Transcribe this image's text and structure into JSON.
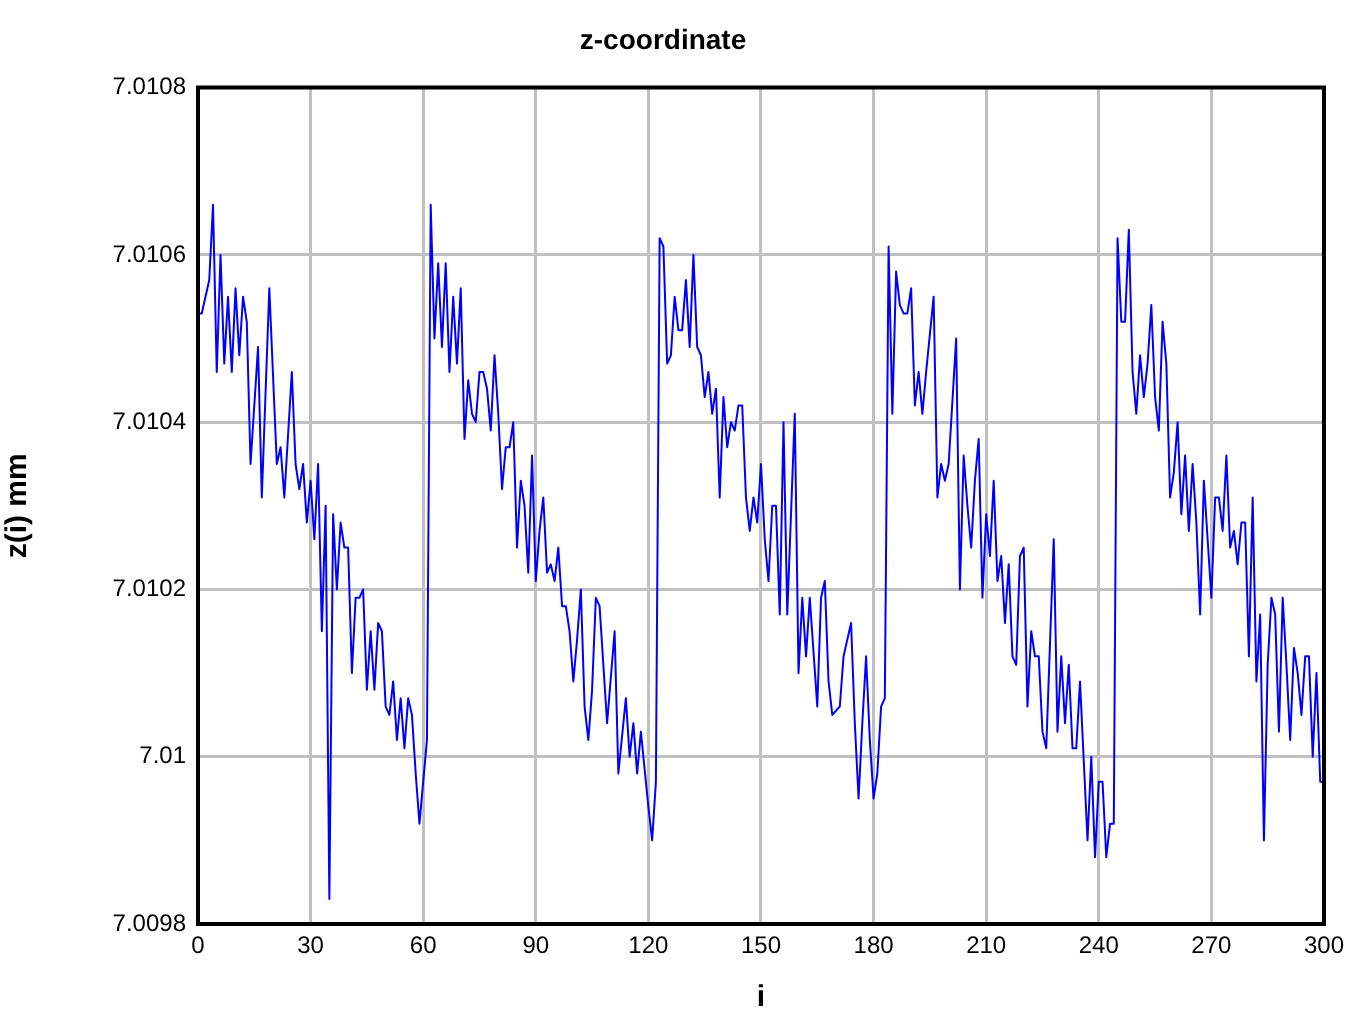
{
  "chart_data": {
    "type": "line",
    "title": "z-coordinate",
    "xlabel": "i",
    "ylabel": "z(i) mm",
    "xlim": [
      0,
      300
    ],
    "xticks": [
      0,
      30,
      60,
      90,
      120,
      150,
      180,
      210,
      240,
      270,
      300
    ],
    "ylim": [
      7.0098,
      7.0108
    ],
    "yticks": [
      7.0098,
      7.01,
      7.0102,
      7.0104,
      7.0106,
      7.0108
    ],
    "grid": true,
    "legend": false,
    "marker": "none",
    "line_style": "solid",
    "series": [
      {
        "color": "#0000ff",
        "x": [
          0,
          1,
          2,
          3,
          4,
          5,
          6,
          7,
          8,
          9,
          10,
          11,
          12,
          13,
          14,
          16,
          17,
          19,
          21,
          22,
          23,
          25,
          26,
          27,
          28,
          29,
          30,
          31,
          32,
          33,
          34,
          35,
          36,
          37,
          38,
          39,
          40,
          41,
          42,
          43,
          44,
          45,
          46,
          47,
          48,
          49,
          50,
          51,
          52,
          53,
          54,
          55,
          56,
          57,
          58,
          59,
          61,
          62,
          63,
          64,
          65,
          66,
          67,
          68,
          69,
          70,
          71,
          72,
          73,
          74,
          75,
          76,
          77,
          78,
          79,
          80,
          81,
          82,
          83,
          84,
          85,
          86,
          87,
          88,
          89,
          90,
          91,
          92,
          93,
          94,
          95,
          96,
          97,
          98,
          99,
          100,
          101,
          102,
          103,
          104,
          105,
          106,
          107,
          109,
          111,
          112,
          114,
          115,
          116,
          117,
          118,
          120,
          121,
          122,
          123,
          124,
          125,
          126,
          127,
          128,
          129,
          130,
          131,
          132,
          133,
          134,
          135,
          136,
          137,
          138,
          139,
          140,
          141,
          142,
          143,
          144,
          145,
          146,
          147,
          148,
          149,
          150,
          151,
          152,
          153,
          154,
          155,
          156,
          157,
          158,
          159,
          160,
          161,
          162,
          163,
          165,
          166,
          167,
          168,
          169,
          171,
          172,
          174,
          175,
          176,
          177,
          178,
          179,
          180,
          181,
          182,
          183,
          184,
          185,
          186,
          187,
          188,
          189,
          190,
          191,
          192,
          193,
          194,
          196,
          197,
          198,
          199,
          200,
          202,
          203,
          204,
          205,
          206,
          207,
          208,
          209,
          210,
          211,
          212,
          213,
          214,
          215,
          216,
          217,
          218,
          219,
          220,
          221,
          222,
          223,
          224,
          225,
          226,
          228,
          229,
          230,
          231,
          232,
          233,
          234,
          235,
          237,
          238,
          239,
          240,
          241,
          242,
          243,
          244,
          245,
          246,
          247,
          248,
          249,
          250,
          251,
          252,
          253,
          254,
          255,
          256,
          257,
          258,
          259,
          260,
          261,
          262,
          263,
          264,
          265,
          266,
          267,
          268,
          269,
          270,
          271,
          272,
          273,
          274,
          275,
          276,
          277,
          278,
          279,
          280,
          281,
          282,
          283,
          284,
          285,
          286,
          287,
          288,
          289,
          290,
          291,
          292,
          293,
          294,
          295,
          296,
          297,
          298,
          299,
          300
        ],
        "values": [
          7.01053,
          7.01053,
          7.01055,
          7.01057,
          7.01066,
          7.01046,
          7.0106,
          7.01047,
          7.01055,
          7.01046,
          7.01056,
          7.01048,
          7.01055,
          7.01052,
          7.01035,
          7.01049,
          7.01031,
          7.01056,
          7.01035,
          7.01037,
          7.01031,
          7.01046,
          7.01035,
          7.01032,
          7.01035,
          7.01028,
          7.01033,
          7.01026,
          7.01035,
          7.01015,
          7.0103,
          7.00983,
          7.01029,
          7.0102,
          7.01028,
          7.01025,
          7.01025,
          7.0101,
          7.01019,
          7.01019,
          7.0102,
          7.01008,
          7.01015,
          7.01008,
          7.01016,
          7.01015,
          7.01006,
          7.01005,
          7.01009,
          7.01002,
          7.01007,
          7.01001,
          7.01007,
          7.01005,
          7.00998,
          7.00992,
          7.01002,
          7.01066,
          7.0105,
          7.01059,
          7.01049,
          7.01059,
          7.01046,
          7.01055,
          7.01047,
          7.01056,
          7.01038,
          7.01045,
          7.01041,
          7.0104,
          7.01046,
          7.01046,
          7.01044,
          7.01039,
          7.01048,
          7.01041,
          7.01032,
          7.01037,
          7.01037,
          7.0104,
          7.01025,
          7.01033,
          7.0103,
          7.01022,
          7.01036,
          7.01021,
          7.01027,
          7.01031,
          7.01022,
          7.01023,
          7.01021,
          7.01025,
          7.01018,
          7.01018,
          7.01015,
          7.01009,
          7.01014,
          7.0102,
          7.01006,
          7.01002,
          7.01008,
          7.01019,
          7.01018,
          7.01004,
          7.01015,
          7.00998,
          7.01007,
          7.01,
          7.01004,
          7.00998,
          7.01003,
          7.00994,
          7.0099,
          7.00997,
          7.01062,
          7.01061,
          7.01047,
          7.01048,
          7.01055,
          7.01051,
          7.01051,
          7.01057,
          7.01049,
          7.0106,
          7.01049,
          7.01048,
          7.01043,
          7.01046,
          7.01041,
          7.01044,
          7.01031,
          7.01043,
          7.01037,
          7.0104,
          7.01039,
          7.01042,
          7.01042,
          7.01031,
          7.01027,
          7.01031,
          7.01028,
          7.01035,
          7.01026,
          7.01021,
          7.0103,
          7.0103,
          7.01017,
          7.0104,
          7.01017,
          7.01029,
          7.01041,
          7.0101,
          7.01019,
          7.01012,
          7.01019,
          7.01006,
          7.01019,
          7.01021,
          7.01009,
          7.01005,
          7.01006,
          7.01012,
          7.01016,
          7.01004,
          7.00995,
          7.01004,
          7.01012,
          7.01002,
          7.00995,
          7.00998,
          7.01006,
          7.01007,
          7.01061,
          7.01041,
          7.01058,
          7.01054,
          7.01053,
          7.01053,
          7.01056,
          7.01042,
          7.01046,
          7.01041,
          7.01046,
          7.01055,
          7.01031,
          7.01035,
          7.01033,
          7.01035,
          7.0105,
          7.0102,
          7.01036,
          7.0103,
          7.01025,
          7.01033,
          7.01038,
          7.01019,
          7.01029,
          7.01024,
          7.01033,
          7.01021,
          7.01024,
          7.01016,
          7.01023,
          7.01012,
          7.01011,
          7.01024,
          7.01025,
          7.01006,
          7.01015,
          7.01012,
          7.01012,
          7.01003,
          7.01001,
          7.01026,
          7.01003,
          7.01012,
          7.01004,
          7.01011,
          7.01001,
          7.01001,
          7.01009,
          7.0099,
          7.01,
          7.00988,
          7.00997,
          7.00997,
          7.00988,
          7.00992,
          7.00992,
          7.01062,
          7.01052,
          7.01052,
          7.01063,
          7.01046,
          7.01041,
          7.01048,
          7.01043,
          7.01047,
          7.01054,
          7.01043,
          7.01039,
          7.01052,
          7.01047,
          7.01031,
          7.01034,
          7.0104,
          7.01029,
          7.01036,
          7.01027,
          7.01035,
          7.01028,
          7.01017,
          7.01033,
          7.01026,
          7.01019,
          7.01031,
          7.01031,
          7.01027,
          7.01036,
          7.01025,
          7.01027,
          7.01023,
          7.01028,
          7.01028,
          7.01012,
          7.01031,
          7.01009,
          7.01017,
          7.0099,
          7.01011,
          7.01019,
          7.01017,
          7.01003,
          7.01019,
          7.01011,
          7.01002,
          7.01013,
          7.0101,
          7.01005,
          7.01012,
          7.01012,
          7.01,
          7.0101,
          7.00997,
          7.00997
        ]
      }
    ]
  }
}
